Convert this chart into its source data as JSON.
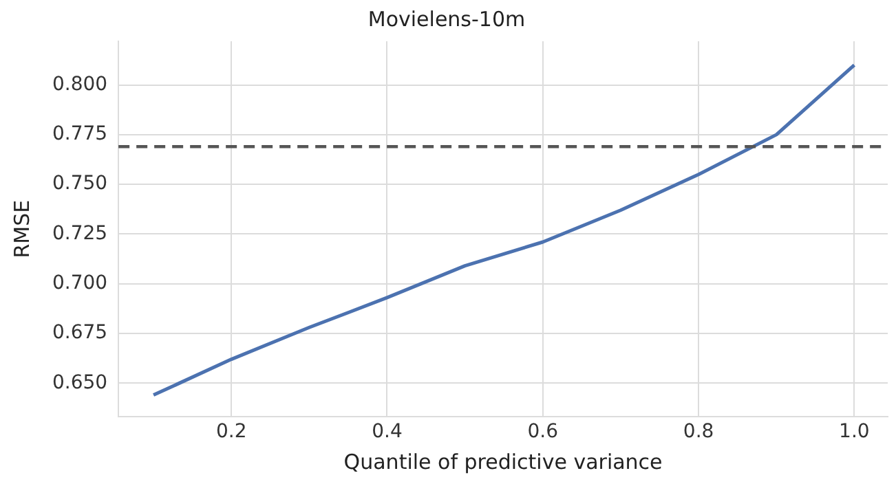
{
  "chart_data": {
    "type": "line",
    "title": "Movielens-10m",
    "xlabel": "Quantile of predictive variance",
    "ylabel": "RMSE",
    "x": [
      0.1,
      0.2,
      0.3,
      0.4,
      0.5,
      0.6,
      0.7,
      0.8,
      0.9,
      1.0
    ],
    "series": [
      {
        "color": "#4c72b0",
        "values": [
          0.644,
          0.662,
          0.678,
          0.693,
          0.709,
          0.721,
          0.737,
          0.755,
          0.775,
          0.81
        ]
      }
    ],
    "xlim": [
      0.055,
      1.043
    ],
    "xticks": [
      0.2,
      0.4,
      0.6,
      0.8,
      {
        "value": 1,
        "label": "1.0"
      }
    ],
    "ylim": [
      0.633,
      0.822
    ],
    "yticks": [
      {
        "value": 0.65,
        "label": "0.650"
      },
      0.675,
      {
        "value": 0.7,
        "label": "0.700"
      },
      0.725,
      {
        "value": 0.75,
        "label": "0.750"
      },
      0.775,
      {
        "value": 0.8,
        "label": "0.800"
      }
    ],
    "ref_lines": [
      {
        "axis": "y",
        "value": 0.769,
        "color": "#555555",
        "line_style": "dashed"
      }
    ],
    "grid": true,
    "legend": false,
    "marker": "none",
    "line_style": "solid"
  }
}
